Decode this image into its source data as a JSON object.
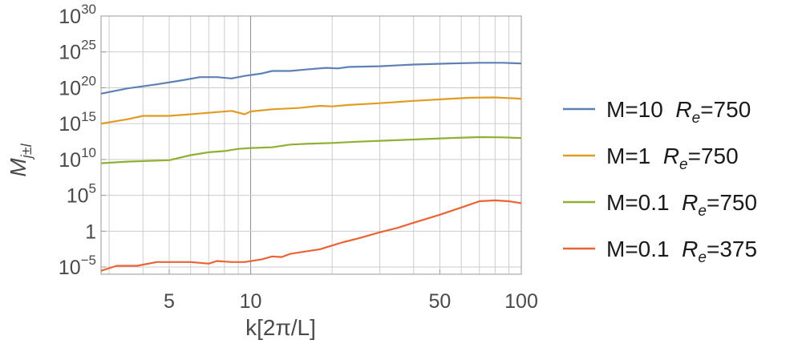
{
  "chart_data": {
    "type": "line",
    "title": "",
    "xlabel": "k[2π/L]",
    "ylabel": {
      "base": "M",
      "sub": "j±l"
    },
    "x_scale": "log",
    "y_scale": "log",
    "xlim": [
      2.8,
      100
    ],
    "ylim": [
      1e-06,
      1e+30
    ],
    "grid": true,
    "legend_position": "right",
    "x_ticks": [
      {
        "value": 5,
        "label": "5"
      },
      {
        "value": 10,
        "label": "10"
      },
      {
        "value": 50,
        "label": "50"
      },
      {
        "value": 100,
        "label": "100"
      }
    ],
    "y_ticks": [
      {
        "value": 1e-05,
        "base": "10",
        "exp": "−5"
      },
      {
        "value": 1,
        "base": "1",
        "exp": ""
      },
      {
        "value": 100000.0,
        "base": "10",
        "exp": "5"
      },
      {
        "value": 10000000000.0,
        "base": "10",
        "exp": "10"
      },
      {
        "value": 1000000000000000.0,
        "base": "10",
        "exp": "15"
      },
      {
        "value": 1e+20,
        "base": "10",
        "exp": "20"
      },
      {
        "value": 1e+25,
        "base": "10",
        "exp": "25"
      },
      {
        "value": 1e+30,
        "base": "10",
        "exp": "30"
      }
    ],
    "series": [
      {
        "label": {
          "prefix": "M=10",
          "symbol": "R",
          "sub": "e",
          "suffix": "=750"
        },
        "color": "#5e81b5",
        "points": [
          [
            2.8,
            1.5e+19
          ],
          [
            3.5,
            8e+19
          ],
          [
            4.5,
            3e+20
          ],
          [
            5.5,
            1e+21
          ],
          [
            6.5,
            3e+21
          ],
          [
            7.5,
            3e+21
          ],
          [
            8.5,
            2e+21
          ],
          [
            9.5,
            4.5e+21
          ],
          [
            11,
            1e+22
          ],
          [
            12,
            2.2e+22
          ],
          [
            14,
            2.2e+22
          ],
          [
            16,
            3.5e+22
          ],
          [
            19,
            6e+22
          ],
          [
            21,
            5e+22
          ],
          [
            23,
            8e+22
          ],
          [
            30,
            1e+23
          ],
          [
            40,
            1.7e+23
          ],
          [
            55,
            2.5e+23
          ],
          [
            70,
            3e+23
          ],
          [
            85,
            3e+23
          ],
          [
            100,
            2.5e+23
          ]
        ]
      },
      {
        "label": {
          "prefix": "M=1",
          "symbol": "R",
          "sub": "e",
          "suffix": "=750"
        },
        "color": "#e19c24",
        "points": [
          [
            2.8,
            1000000000000000.0
          ],
          [
            3.5,
            4000000000000000.0
          ],
          [
            4,
            1.2e+16
          ],
          [
            5,
            1.2e+16
          ],
          [
            6,
            2e+16
          ],
          [
            7.5,
            4e+16
          ],
          [
            8.5,
            6e+16
          ],
          [
            9.5,
            2e+16
          ],
          [
            10,
            5e+16
          ],
          [
            12,
            1e+17
          ],
          [
            15,
            1.5e+17
          ],
          [
            18,
            3e+17
          ],
          [
            20,
            2.5e+17
          ],
          [
            23,
            4e+17
          ],
          [
            30,
            7e+17
          ],
          [
            40,
            1.5e+18
          ],
          [
            55,
            3e+18
          ],
          [
            65,
            4e+18
          ],
          [
            80,
            4.5e+18
          ],
          [
            100,
            3e+18
          ]
        ]
      },
      {
        "label": {
          "prefix": "M=0.1",
          "symbol": "R",
          "sub": "e",
          "suffix": "=750"
        },
        "color": "#8fb032",
        "points": [
          [
            2.8,
            3000000000.0
          ],
          [
            3.5,
            5000000000.0
          ],
          [
            4.5,
            7000000000.0
          ],
          [
            5,
            8000000000.0
          ],
          [
            6,
            40000000000.0
          ],
          [
            7,
            100000000000.0
          ],
          [
            8,
            150000000000.0
          ],
          [
            9,
            300000000000.0
          ],
          [
            10,
            400000000000.0
          ],
          [
            12,
            500000000000.0
          ],
          [
            14,
            1200000000000.0
          ],
          [
            16,
            1500000000000.0
          ],
          [
            20,
            2000000000000.0
          ],
          [
            25,
            3000000000000.0
          ],
          [
            30,
            4000000000000.0
          ],
          [
            40,
            6000000000000.0
          ],
          [
            55,
            10000000000000.0
          ],
          [
            70,
            13000000000000.0
          ],
          [
            85,
            12000000000000.0
          ],
          [
            100,
            10000000000000.0
          ]
        ]
      },
      {
        "label": {
          "prefix": "M=0.1",
          "symbol": "R",
          "sub": "e",
          "suffix": "=375"
        },
        "color": "#eb6235",
        "points": [
          [
            2.8,
            3e-06
          ],
          [
            3.2,
            1.5e-05
          ],
          [
            3.8,
            1.5e-05
          ],
          [
            4.5,
            5e-05
          ],
          [
            5,
            5e-05
          ],
          [
            6,
            5e-05
          ],
          [
            7,
            3e-05
          ],
          [
            7.5,
            7e-05
          ],
          [
            8.5,
            5e-05
          ],
          [
            9.5,
            5e-05
          ],
          [
            11,
            0.00012
          ],
          [
            12,
            0.0003
          ],
          [
            13,
            0.00025
          ],
          [
            14,
            0.0007
          ],
          [
            16,
            0.0015
          ],
          [
            18,
            0.003
          ],
          [
            20,
            0.01
          ],
          [
            22,
            0.03
          ],
          [
            25,
            0.1
          ],
          [
            30,
            0.7
          ],
          [
            35,
            3
          ],
          [
            40,
            15
          ],
          [
            50,
            200
          ],
          [
            60,
            2000
          ],
          [
            70,
            15000.0
          ],
          [
            80,
            20000.0
          ],
          [
            90,
            15000.0
          ],
          [
            100,
            8000.0
          ]
        ]
      }
    ]
  }
}
